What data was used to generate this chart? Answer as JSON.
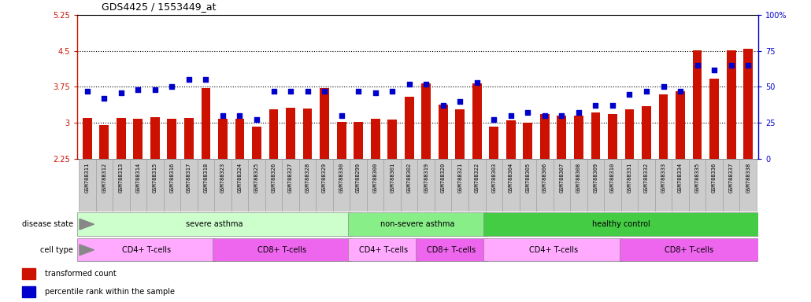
{
  "title": "GDS4425 / 1553449_at",
  "samples": [
    "GSM788311",
    "GSM788312",
    "GSM788313",
    "GSM788314",
    "GSM788315",
    "GSM788316",
    "GSM788317",
    "GSM788318",
    "GSM788323",
    "GSM788324",
    "GSM788325",
    "GSM788326",
    "GSM788327",
    "GSM788328",
    "GSM788329",
    "GSM788330",
    "GSM788299",
    "GSM788300",
    "GSM788301",
    "GSM788302",
    "GSM788319",
    "GSM788320",
    "GSM788321",
    "GSM788322",
    "GSM788303",
    "GSM788304",
    "GSM788305",
    "GSM788306",
    "GSM788307",
    "GSM788308",
    "GSM788309",
    "GSM788310",
    "GSM788331",
    "GSM788332",
    "GSM788333",
    "GSM788334",
    "GSM788335",
    "GSM788336",
    "GSM788337",
    "GSM788338"
  ],
  "red_values": [
    3.1,
    2.95,
    3.1,
    3.08,
    3.12,
    3.08,
    3.1,
    3.72,
    3.08,
    3.08,
    2.92,
    3.28,
    3.32,
    3.3,
    3.72,
    3.02,
    3.02,
    3.08,
    3.06,
    3.55,
    3.82,
    3.38,
    3.28,
    3.82,
    2.92,
    3.05,
    3.0,
    3.18,
    3.15,
    3.15,
    3.22,
    3.18,
    3.28,
    3.35,
    3.6,
    3.65,
    4.52,
    3.92,
    4.52,
    4.55
  ],
  "blue_values": [
    47,
    42,
    46,
    48,
    48,
    50,
    55,
    55,
    30,
    30,
    27,
    47,
    47,
    47,
    47,
    30,
    47,
    46,
    47,
    52,
    52,
    37,
    40,
    53,
    27,
    30,
    32,
    30,
    30,
    32,
    37,
    37,
    45,
    47,
    50,
    47,
    65,
    62,
    65,
    65
  ],
  "ylim_left": [
    2.25,
    5.25
  ],
  "ylim_right": [
    0,
    100
  ],
  "yticks_left": [
    2.25,
    3.0,
    3.75,
    4.5,
    5.25
  ],
  "yticks_right": [
    0,
    25,
    50,
    75,
    100
  ],
  "ytick_labels_left": [
    "2.25",
    "3",
    "3.75",
    "4.5",
    "5.25"
  ],
  "ytick_labels_right": [
    "0",
    "25",
    "50",
    "75",
    "100%"
  ],
  "hlines": [
    3.0,
    3.75,
    4.5
  ],
  "disease_state_groups": [
    {
      "label": "severe asthma",
      "start": 0,
      "end": 16,
      "color": "#ccffcc"
    },
    {
      "label": "non-severe asthma",
      "start": 16,
      "end": 24,
      "color": "#88ee88"
    },
    {
      "label": "healthy control",
      "start": 24,
      "end": 40,
      "color": "#44cc44"
    }
  ],
  "cell_type_groups": [
    {
      "label": "CD4+ T-cells",
      "start": 0,
      "end": 8,
      "color": "#ffaaff"
    },
    {
      "label": "CD8+ T-cells",
      "start": 8,
      "end": 16,
      "color": "#ee66ee"
    },
    {
      "label": "CD4+ T-cells",
      "start": 16,
      "end": 20,
      "color": "#ffaaff"
    },
    {
      "label": "CD8+ T-cells",
      "start": 20,
      "end": 24,
      "color": "#ee66ee"
    },
    {
      "label": "CD4+ T-cells",
      "start": 24,
      "end": 32,
      "color": "#ffaaff"
    },
    {
      "label": "CD8+ T-cells",
      "start": 32,
      "end": 40,
      "color": "#ee66ee"
    }
  ],
  "bar_color": "#cc1100",
  "dot_color": "#0000cc",
  "bar_width": 0.55,
  "background_color": "#ffffff",
  "xtick_bg_color": "#cccccc",
  "legend_items": [
    "transformed count",
    "percentile rank within the sample"
  ],
  "left_axis_color": "#cc1100",
  "right_axis_color": "#0000cc"
}
